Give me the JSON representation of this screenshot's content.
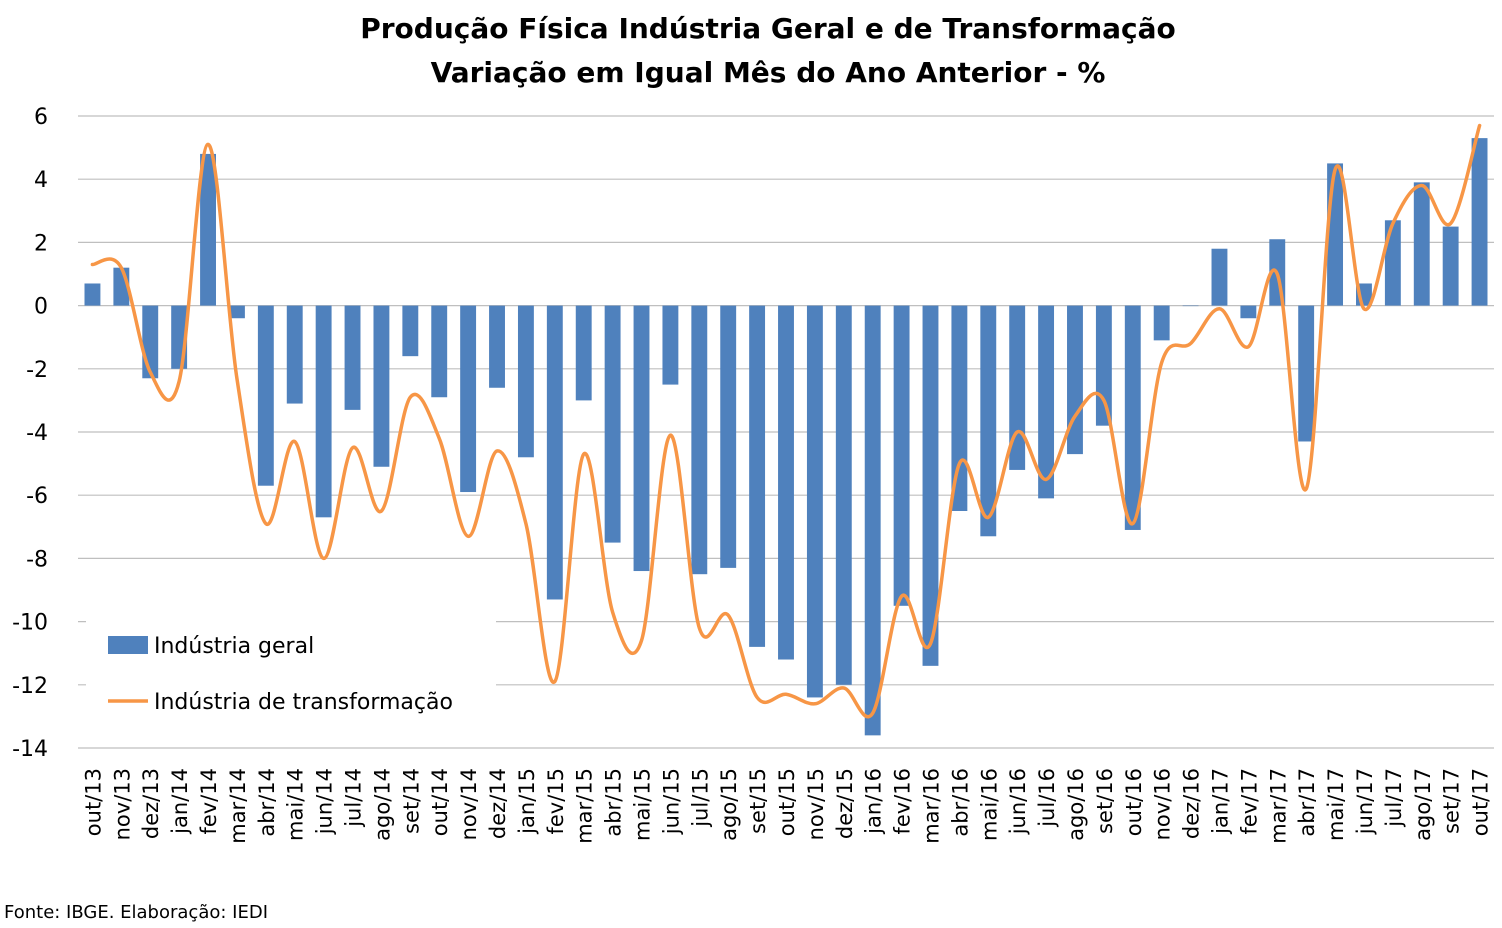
{
  "chart_data": {
    "type": "bar",
    "title": "Produção Física Indústria Geral e de Transformação",
    "subtitle": "Variação em Igual Mês do Ano Anterior - %",
    "source": "Fonte: IBGE. Elaboração: IEDI",
    "ylim": [
      -14,
      6
    ],
    "yticks": [
      "6",
      "4",
      "2",
      "0",
      "-2",
      "-4",
      "-6",
      "-8",
      "-10",
      "-12",
      "-14"
    ],
    "grid": true,
    "legend_position": "bottom-left",
    "categories": [
      "out/13",
      "nov/13",
      "dez/13",
      "jan/14",
      "fev/14",
      "mar/14",
      "abr/14",
      "mai/14",
      "jun/14",
      "jul/14",
      "ago/14",
      "set/14",
      "out/14",
      "nov/14",
      "dez/14",
      "jan/15",
      "fev/15",
      "mar/15",
      "abr/15",
      "mai/15",
      "jun/15",
      "jul/15",
      "ago/15",
      "set/15",
      "out/15",
      "nov/15",
      "dez/15",
      "jan/16",
      "fev/16",
      "mar/16",
      "abr/16",
      "mai/16",
      "jun/16",
      "jul/16",
      "ago/16",
      "set/16",
      "out/16",
      "nov/16",
      "dez/16",
      "jan/17",
      "fev/17",
      "mar/17",
      "abr/17",
      "mai/17",
      "jun/17",
      "jul/17",
      "ago/17",
      "set/17",
      "out/17"
    ],
    "series": [
      {
        "name": "Indústria geral",
        "type": "bar",
        "color": "#4f81bd",
        "values": [
          0.7,
          1.2,
          -2.3,
          -2.0,
          4.8,
          -0.4,
          -5.7,
          -3.1,
          -6.7,
          -3.3,
          -5.1,
          -1.6,
          -2.9,
          -5.9,
          -2.6,
          -4.8,
          -9.3,
          -3.0,
          -7.5,
          -8.4,
          -2.5,
          -8.5,
          -8.3,
          -10.8,
          -11.2,
          -12.4,
          -12.0,
          -13.6,
          -9.5,
          -11.4,
          -6.5,
          -7.3,
          -5.2,
          -6.1,
          -4.7,
          -3.8,
          -7.1,
          -1.1,
          0.0,
          1.8,
          -0.4,
          2.1,
          -4.3,
          4.5,
          0.7,
          2.7,
          3.9,
          2.5,
          5.3
        ]
      },
      {
        "name": "Indústria de transformação",
        "type": "line",
        "color": "#f79646",
        "values": [
          1.3,
          1.2,
          -2.1,
          -2.4,
          5.1,
          -2.3,
          -6.9,
          -4.3,
          -8.0,
          -4.5,
          -6.5,
          -2.9,
          -4.2,
          -7.3,
          -4.6,
          -6.9,
          -11.9,
          -4.7,
          -9.7,
          -10.6,
          -4.1,
          -10.2,
          -9.8,
          -12.4,
          -12.3,
          -12.6,
          -12.1,
          -12.9,
          -9.2,
          -10.7,
          -5.0,
          -6.7,
          -4.0,
          -5.5,
          -3.5,
          -3.0,
          -6.9,
          -1.8,
          -1.2,
          -0.1,
          -1.3,
          1.0,
          -5.8,
          4.3,
          -0.1,
          2.6,
          3.8,
          2.6,
          5.7
        ]
      }
    ]
  }
}
